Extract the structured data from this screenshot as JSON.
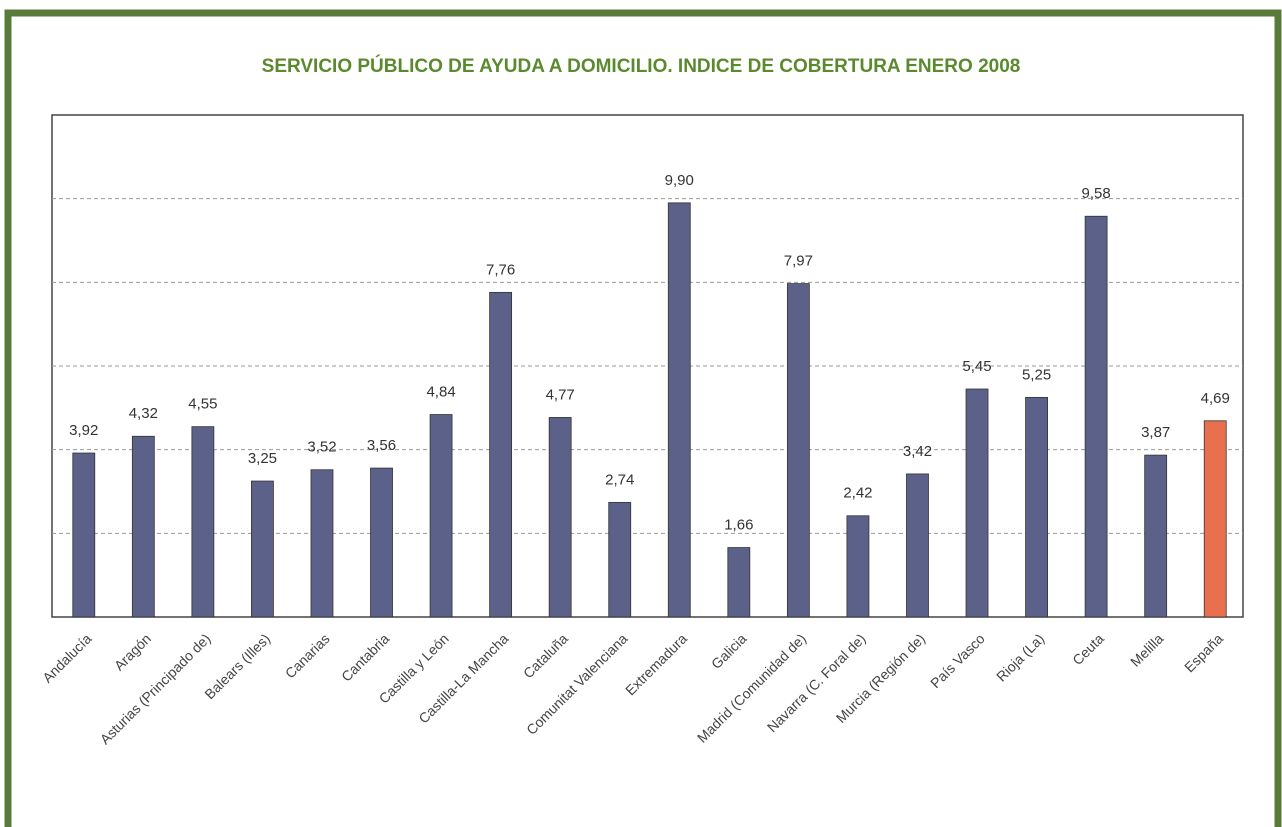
{
  "chart_data": {
    "type": "bar",
    "title": "SERVICIO PÚBLICO DE AYUDA A DOMICILIO. INDICE DE COBERTURA ENERO 2008",
    "categories": [
      "Andalucía",
      "Aragón",
      "Asturias (Principado de)",
      "Balears (Illes)",
      "Canarias",
      "Cantabria",
      "Castilla y León",
      "Castilla-La Mancha",
      "Cataluña",
      "Comunitat Valenciana",
      "Extremadura",
      "Galicia",
      "Madrid (Comunidad de)",
      "Navarra (C. Foral de)",
      "Murcia (Región de)",
      "País Vasco",
      "Rioja (La)",
      "Ceuta",
      "Melilla",
      "España"
    ],
    "values": [
      3.92,
      4.32,
      4.55,
      3.25,
      3.52,
      3.56,
      4.84,
      7.76,
      4.77,
      2.74,
      9.9,
      1.66,
      7.97,
      2.42,
      3.42,
      5.45,
      5.25,
      9.58,
      3.87,
      4.69
    ],
    "value_labels": [
      "3,92",
      "4,32",
      "4,55",
      "3,25",
      "3,52",
      "3,56",
      "4,84",
      "7,76",
      "4,77",
      "2,74",
      "9,90",
      "1,66",
      "7,97",
      "2,42",
      "3,42",
      "5,45",
      "5,25",
      "9,58",
      "3,87",
      "4,69"
    ],
    "colors": [
      "#5b6189",
      "#5b6189",
      "#5b6189",
      "#5b6189",
      "#5b6189",
      "#5b6189",
      "#5b6189",
      "#5b6189",
      "#5b6189",
      "#5b6189",
      "#5b6189",
      "#5b6189",
      "#5b6189",
      "#5b6189",
      "#5b6189",
      "#5b6189",
      "#5b6189",
      "#5b6189",
      "#5b6189",
      "#e8704f"
    ],
    "ylim": [
      0,
      12
    ],
    "yticks": [
      2,
      4,
      6,
      8,
      10
    ],
    "grid": true
  }
}
